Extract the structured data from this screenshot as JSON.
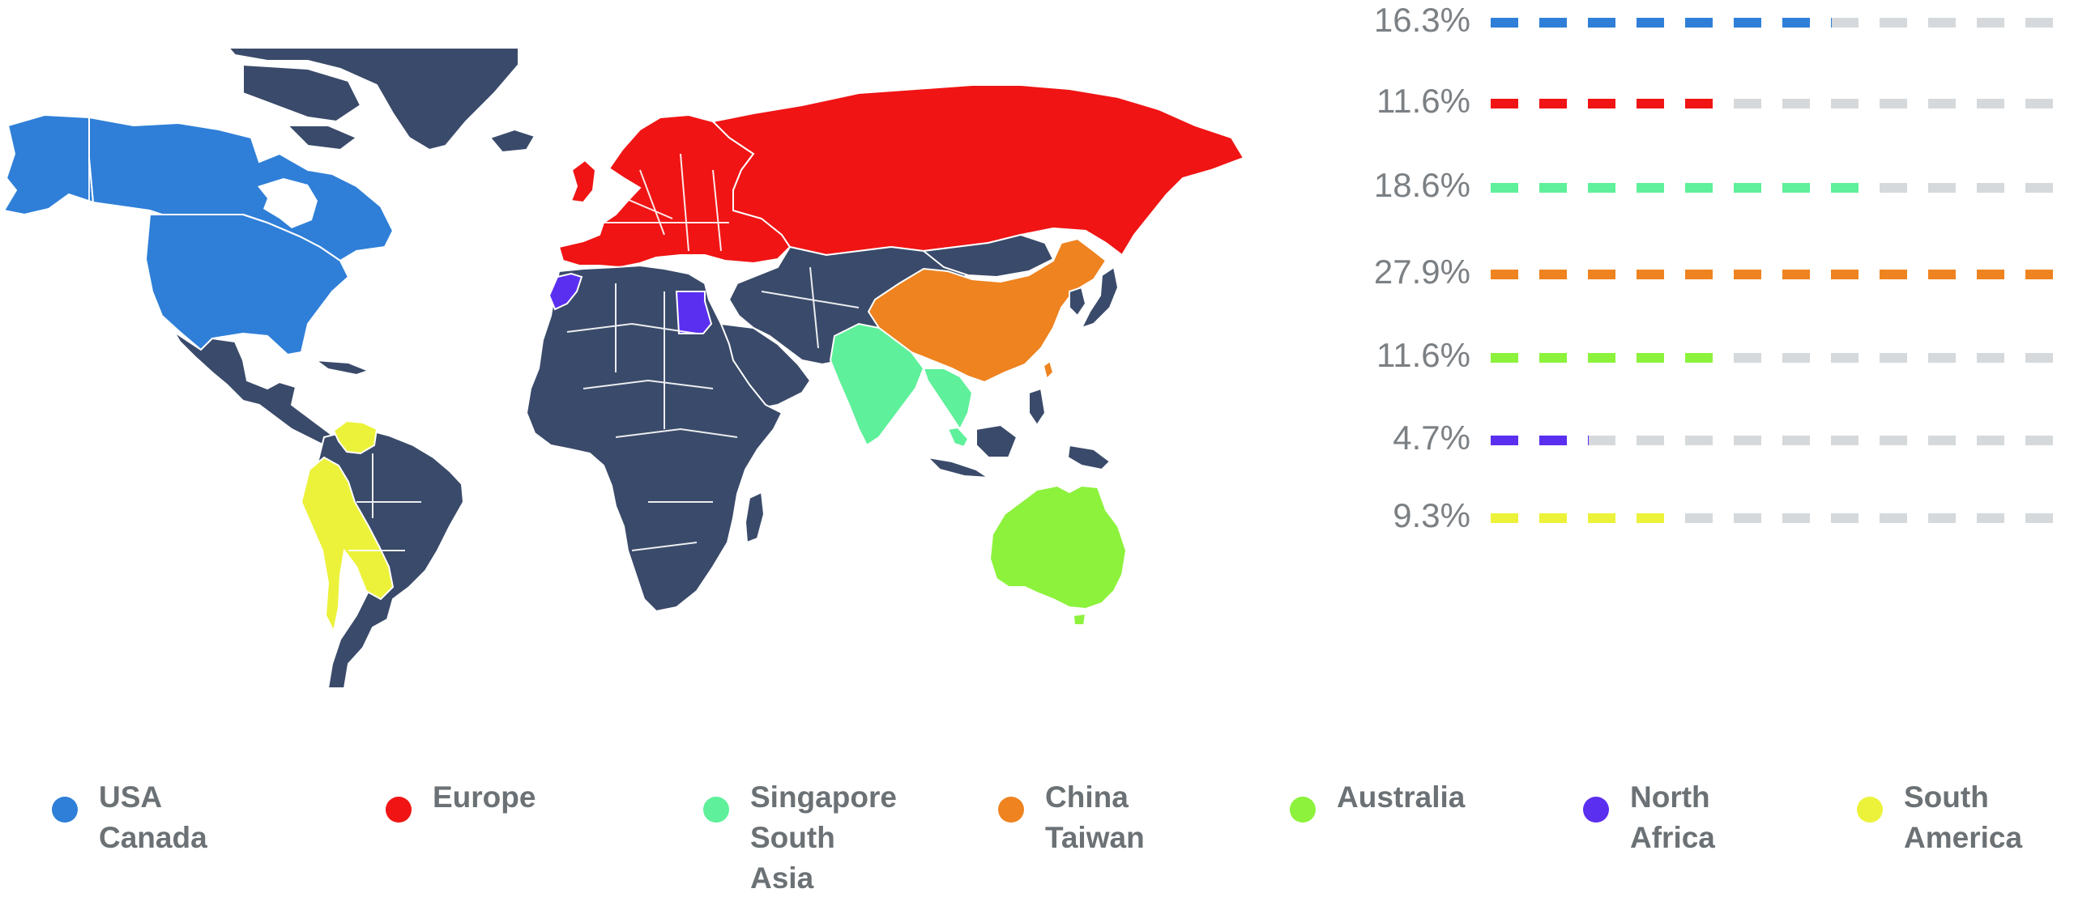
{
  "colors": {
    "land": "#3a4a6a",
    "border": "#ffffff",
    "track": "#d5d9db",
    "label": "#7b8084",
    "legend_text": "#6b7174"
  },
  "regions": [
    {
      "id": "usa-canada",
      "lines": [
        "USA",
        "Canada"
      ],
      "value": 16.3,
      "label": "16.3%",
      "color": "#2f7fd8"
    },
    {
      "id": "europe",
      "lines": [
        "Europe"
      ],
      "value": 11.6,
      "label": "11.6%",
      "color": "#f01414"
    },
    {
      "id": "singapore-south-asia",
      "lines": [
        "Singapore",
        "South",
        "Asia"
      ],
      "value": 18.6,
      "label": "18.6%",
      "color": "#5ef09a"
    },
    {
      "id": "china-taiwan",
      "lines": [
        "China",
        "Taiwan"
      ],
      "value": 27.9,
      "label": "27.9%",
      "color": "#ee8320"
    },
    {
      "id": "australia",
      "lines": [
        "Australia"
      ],
      "value": 11.6,
      "label": "11.6%",
      "color": "#8cf23c"
    },
    {
      "id": "north-africa",
      "lines": [
        "North",
        "Africa"
      ],
      "value": 4.7,
      "label": "4.7%",
      "color": "#5b2ff0"
    },
    {
      "id": "south-america",
      "lines": [
        "South",
        "America"
      ],
      "value": 9.3,
      "label": "9.3%",
      "color": "#ecf23a"
    }
  ],
  "chart_data": {
    "type": "bar",
    "orientation": "horizontal",
    "categories": [
      "USA Canada",
      "Europe",
      "Singapore South Asia",
      "China Taiwan",
      "Australia",
      "North Africa",
      "South America"
    ],
    "values": [
      16.3,
      11.6,
      18.6,
      27.9,
      11.6,
      4.7,
      9.3
    ],
    "value_labels": [
      "16.3%",
      "11.6%",
      "18.6%",
      "27.9%",
      "11.6%",
      "4.7%",
      "9.3%"
    ],
    "xlim": [
      0,
      27.9
    ],
    "legend_placement": "bottom",
    "grid": false
  }
}
